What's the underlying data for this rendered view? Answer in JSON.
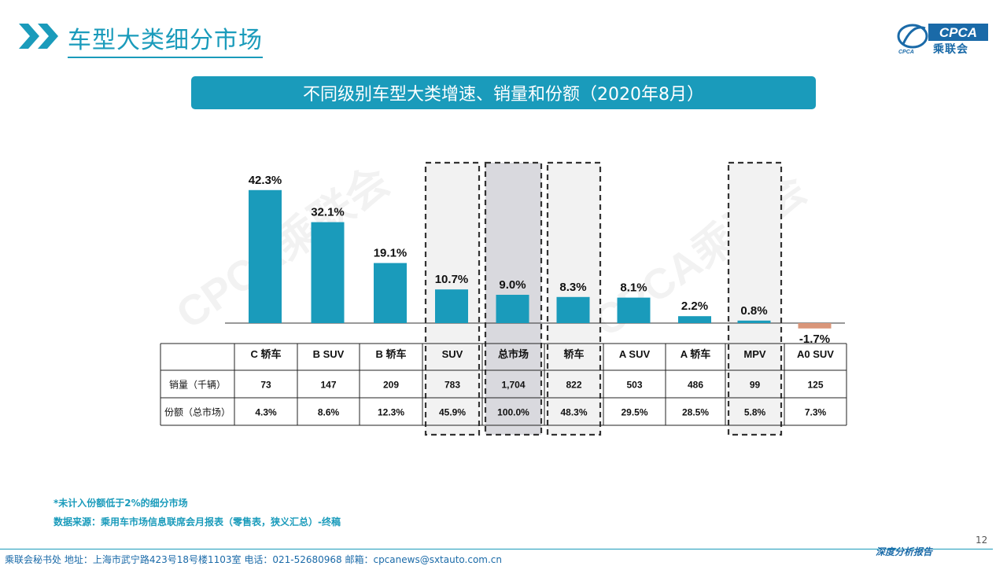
{
  "header": {
    "title": "车型大类细分市场",
    "logo_label": "乘联会",
    "logo_mark": "CPCA",
    "logo_sub": "CPCA"
  },
  "banner": {
    "text": "不同级别车型大类增速、销量和份额（2020年8月）"
  },
  "watermark": "CPCA乘联会",
  "chart_data": {
    "type": "bar",
    "title": "不同级别车型大类增速、销量和份额（2020年8月）",
    "categories": [
      "C 轿车",
      "B SUV",
      "B 轿车",
      "SUV",
      "总市场",
      "轿车",
      "A SUV",
      "A 轿车",
      "MPV",
      "A0 SUV"
    ],
    "values": [
      42.3,
      32.1,
      19.1,
      10.7,
      9.0,
      8.3,
      8.1,
      2.2,
      0.8,
      -1.7
    ],
    "value_labels": [
      "42.3%",
      "32.1%",
      "19.1%",
      "10.7%",
      "9.0%",
      "8.3%",
      "8.1%",
      "2.2%",
      "0.8%",
      "-1.7%"
    ],
    "unit": "%",
    "highlighted": [
      "SUV",
      "总市场",
      "轿车",
      "MPV"
    ],
    "colors": {
      "positive": "#1a9bbb",
      "negative": "#d9967a",
      "highlight_box": "#f2f2f2",
      "market_box": "#d9d9de"
    },
    "table": {
      "rows": [
        {
          "label": "销量（千辆）",
          "values": [
            "73",
            "147",
            "209",
            "783",
            "1,704",
            "822",
            "503",
            "486",
            "99",
            "125"
          ]
        },
        {
          "label": "份额（总市场）",
          "values": [
            "4.3%",
            "8.6%",
            "12.3%",
            "45.9%",
            "100.0%",
            "48.3%",
            "29.5%",
            "28.5%",
            "5.8%",
            "7.3%"
          ]
        }
      ]
    }
  },
  "notes": {
    "note1": "*未计入份额低于2%的细分市场",
    "note2": "数据来源：乘用车市场信息联席会月报表（零售表，狭义汇总）-终稿"
  },
  "footer": {
    "text": "乘联会秘书处   地址：上海市武宁路423号18号楼1103室  电话：021-52680968   邮箱：cpcanews@sxtauto.com.cn",
    "report_label": "深度分析报告",
    "page_number": "12"
  }
}
